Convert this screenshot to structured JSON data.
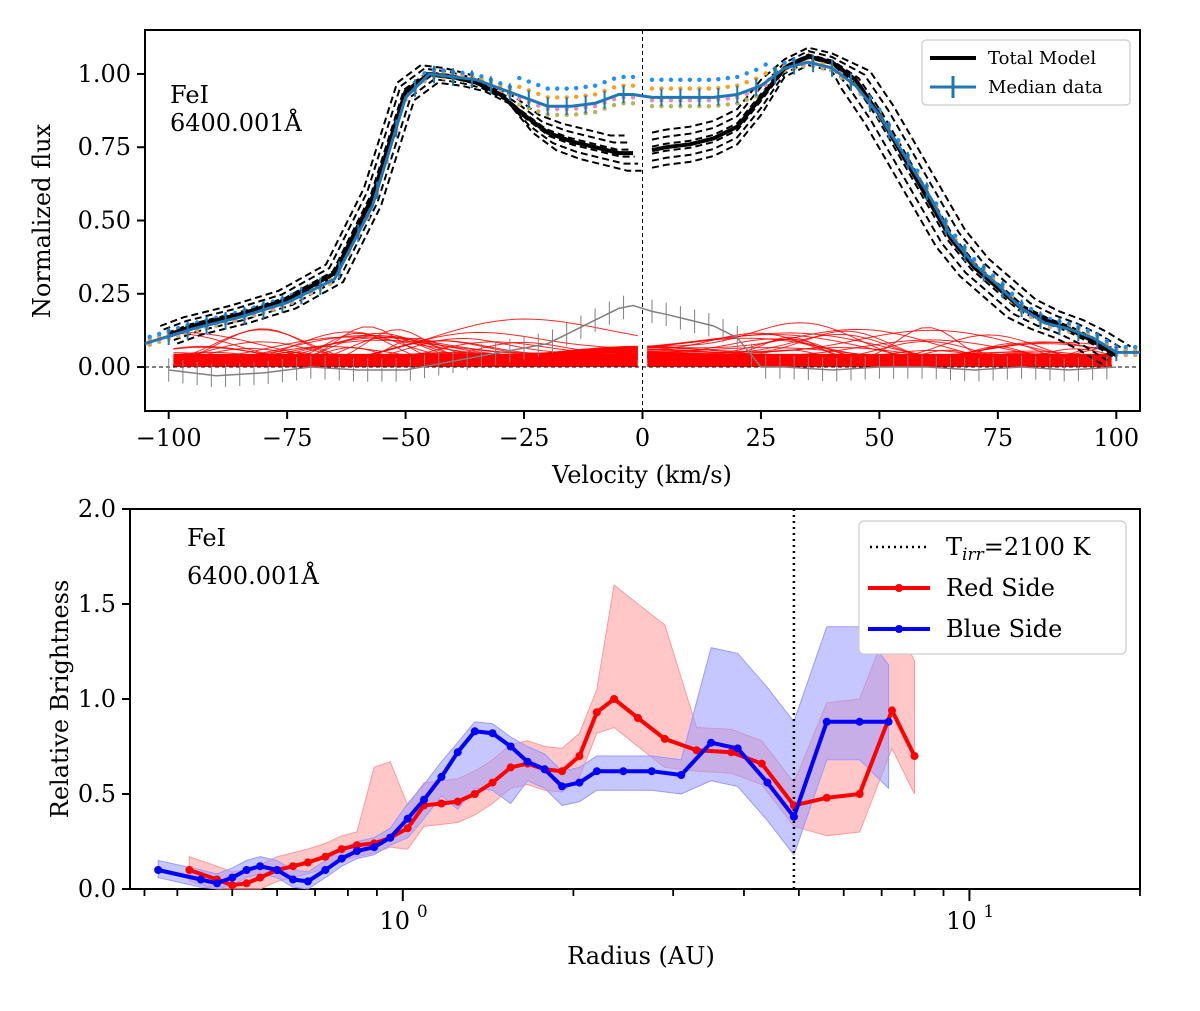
{
  "chart_data": [
    {
      "type": "line",
      "panel": "top",
      "annotation": {
        "line1": "FeI",
        "line2": "6400.001Å"
      },
      "xlabel": "Velocity (km/s)",
      "ylabel": "Normalized flux",
      "xlim": [
        -105,
        105
      ],
      "ylim": [
        -0.15,
        1.15
      ],
      "xticks": [
        -100,
        -75,
        -50,
        -25,
        0,
        25,
        50,
        75,
        100
      ],
      "xtick_labels": [
        "−100",
        "−75",
        "−50",
        "−25",
        "0",
        "25",
        "50",
        "75",
        "100"
      ],
      "yticks": [
        0.0,
        0.25,
        0.5,
        0.75,
        1.0
      ],
      "ytick_labels": [
        "0.00",
        "0.25",
        "0.50",
        "0.75",
        "1.00"
      ],
      "legend": {
        "position": "top-right",
        "entries": [
          "Total Model",
          "Median data"
        ]
      },
      "colors": {
        "model": "#000000",
        "data": "#1f77b4",
        "components": "#ff0000",
        "residual": "#808080"
      },
      "series": [
        {
          "name": "Median data (blue)",
          "x": [
            -105,
            -95,
            -85,
            -75,
            -65,
            -57,
            -50,
            -45,
            -40,
            -35,
            -30,
            -25,
            -20,
            -15,
            -10,
            -5,
            -2,
            2,
            5,
            10,
            15,
            20,
            25,
            30,
            35,
            40,
            45,
            50,
            55,
            60,
            65,
            70,
            75,
            80,
            85,
            90,
            95,
            100,
            105
          ],
          "y": [
            0.08,
            0.13,
            0.17,
            0.22,
            0.3,
            0.55,
            0.92,
            1.0,
            0.99,
            0.98,
            0.95,
            0.92,
            0.89,
            0.89,
            0.9,
            0.93,
            0.93,
            0.92,
            0.92,
            0.92,
            0.92,
            0.93,
            0.96,
            1.02,
            1.04,
            1.02,
            0.96,
            0.86,
            0.73,
            0.6,
            0.45,
            0.35,
            0.28,
            0.2,
            0.15,
            0.13,
            0.1,
            0.05,
            0.05
          ]
        },
        {
          "name": "Total Model red side",
          "x": [
            2,
            5,
            10,
            15,
            20,
            25,
            30,
            35,
            40,
            45,
            50,
            55,
            60,
            65,
            70,
            75,
            80,
            85,
            90,
            95,
            100
          ],
          "y": [
            0.74,
            0.75,
            0.76,
            0.78,
            0.82,
            0.92,
            1.02,
            1.06,
            1.04,
            0.98,
            0.86,
            0.72,
            0.58,
            0.44,
            0.34,
            0.27,
            0.2,
            0.16,
            0.13,
            0.09,
            0.04
          ]
        },
        {
          "name": "Total Model blue side",
          "x": [
            -100,
            -95,
            -85,
            -75,
            -65,
            -57,
            -50,
            -45,
            -40,
            -35,
            -30,
            -25,
            -20,
            -15,
            -10,
            -5,
            -2
          ],
          "y": [
            0.11,
            0.14,
            0.18,
            0.23,
            0.32,
            0.58,
            0.94,
            1.0,
            0.99,
            0.97,
            0.93,
            0.86,
            0.8,
            0.77,
            0.75,
            0.73,
            0.73
          ]
        },
        {
          "name": "Residual",
          "x": [
            -100,
            -90,
            -80,
            -70,
            -60,
            -50,
            -40,
            -30,
            -20,
            -15,
            -10,
            -5,
            -2,
            2,
            5,
            10,
            15,
            20,
            25,
            30,
            40,
            50,
            60,
            70,
            80,
            90,
            100
          ],
          "y": [
            -0.01,
            -0.03,
            -0.02,
            0.0,
            -0.01,
            -0.01,
            0.02,
            0.05,
            0.08,
            0.12,
            0.16,
            0.2,
            0.21,
            0.19,
            0.18,
            0.16,
            0.14,
            0.1,
            0.0,
            0.0,
            -0.01,
            0.0,
            0.0,
            -0.01,
            0.0,
            -0.01,
            0.0
          ]
        }
      ]
    },
    {
      "type": "line",
      "panel": "bottom",
      "annotation": {
        "line1": "FeI",
        "line2": "6400.001Å"
      },
      "xlabel": "Radius (AU)",
      "ylabel": "Relative Brightness",
      "xscale": "log",
      "xlim": [
        0.33,
        20
      ],
      "ylim": [
        0.0,
        2.0
      ],
      "xticks_major": [
        1,
        10
      ],
      "xtick_labels": [
        "10",
        "10"
      ],
      "xtick_exponents": [
        "0",
        "1"
      ],
      "yticks": [
        0.0,
        0.5,
        1.0,
        1.5,
        2.0
      ],
      "ytick_labels": [
        "0.0",
        "0.5",
        "1.0",
        "1.5",
        "2.0"
      ],
      "vline": {
        "x": 4.9,
        "label": "T",
        "label_sub": "irr",
        "label_rest": "=2100 K"
      },
      "legend": {
        "position": "top-right",
        "entries": [
          "Red Side",
          "Blue Side"
        ]
      },
      "colors": {
        "red": "#ff0000",
        "blue": "#0000ff",
        "red_band": "#ff9999",
        "blue_band": "#9999ff"
      },
      "series": [
        {
          "name": "Red Side",
          "x": [
            0.42,
            0.47,
            0.5,
            0.53,
            0.56,
            0.6,
            0.64,
            0.68,
            0.73,
            0.78,
            0.83,
            0.89,
            0.95,
            1.02,
            1.09,
            1.17,
            1.25,
            1.34,
            1.44,
            1.55,
            1.66,
            1.78,
            1.91,
            2.05,
            2.2,
            2.36,
            2.6,
            2.9,
            3.3,
            3.8,
            4.3,
            4.9,
            5.6,
            6.4,
            7.3,
            8.0
          ],
          "y": [
            0.1,
            0.05,
            0.02,
            0.03,
            0.06,
            0.1,
            0.12,
            0.14,
            0.17,
            0.21,
            0.23,
            0.24,
            0.27,
            0.32,
            0.44,
            0.45,
            0.46,
            0.5,
            0.56,
            0.64,
            0.66,
            0.63,
            0.62,
            0.7,
            0.93,
            1.0,
            0.9,
            0.79,
            0.73,
            0.72,
            0.66,
            0.44,
            0.48,
            0.5,
            0.94,
            0.7
          ]
        },
        {
          "name": "Blue Side",
          "x": [
            0.37,
            0.44,
            0.47,
            0.5,
            0.53,
            0.56,
            0.6,
            0.64,
            0.68,
            0.73,
            0.78,
            0.83,
            0.89,
            0.95,
            1.02,
            1.09,
            1.17,
            1.25,
            1.34,
            1.44,
            1.55,
            1.66,
            1.78,
            1.91,
            2.05,
            2.2,
            2.45,
            2.75,
            3.1,
            3.5,
            3.9,
            4.4,
            4.9,
            5.6,
            6.4,
            7.2
          ],
          "y": [
            0.1,
            0.05,
            0.03,
            0.06,
            0.1,
            0.12,
            0.1,
            0.05,
            0.04,
            0.1,
            0.16,
            0.2,
            0.22,
            0.27,
            0.37,
            0.47,
            0.59,
            0.72,
            0.83,
            0.82,
            0.75,
            0.67,
            0.63,
            0.54,
            0.56,
            0.62,
            0.62,
            0.62,
            0.6,
            0.77,
            0.74,
            0.56,
            0.38,
            0.88,
            0.88,
            0.88
          ]
        }
      ]
    }
  ]
}
